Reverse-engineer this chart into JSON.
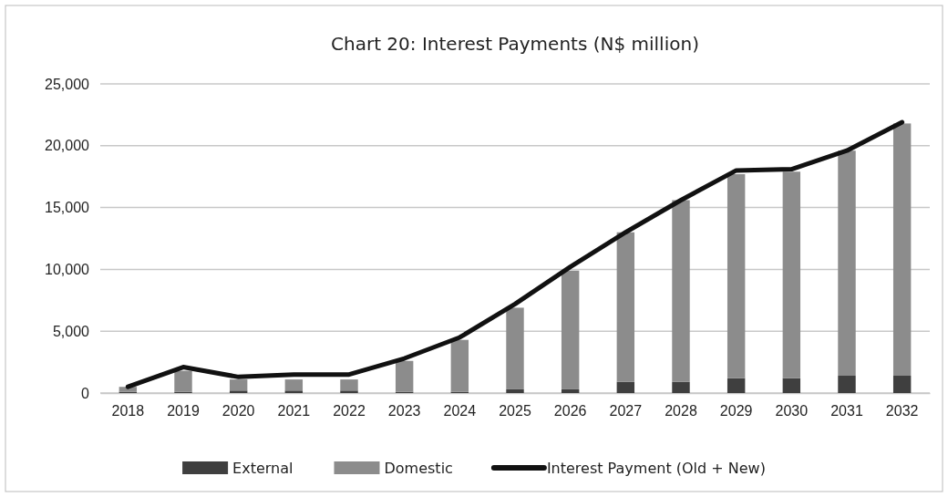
{
  "chart_data": {
    "type": "bar",
    "title": "Chart 20: Interest Payments (N$ million)",
    "stacked": true,
    "categories": [
      "2018",
      "2019",
      "2020",
      "2021",
      "2022",
      "2023",
      "2024",
      "2025",
      "2026",
      "2027",
      "2028",
      "2029",
      "2030",
      "2031",
      "2032"
    ],
    "series": [
      {
        "name": "External",
        "color": "#3f3f3f",
        "values": [
          100,
          100,
          200,
          200,
          200,
          100,
          100,
          300,
          300,
          900,
          900,
          1200,
          1200,
          1400,
          1400
        ]
      },
      {
        "name": "Domestic",
        "color": "#8c8c8c",
        "values": [
          400,
          1700,
          900,
          900,
          900,
          2500,
          4200,
          6600,
          9600,
          12100,
          14700,
          16500,
          16700,
          18200,
          20400
        ]
      },
      {
        "name": "Interest Payment (Old + New)",
        "type": "line",
        "color": "#111111",
        "values": [
          500,
          2100,
          1300,
          1500,
          1500,
          2800,
          4500,
          7200,
          10200,
          13000,
          15600,
          18000,
          18100,
          19600,
          21900
        ]
      }
    ],
    "ylim": [
      0,
      25000
    ],
    "yticks": [
      {
        "value": 0,
        "label": "0"
      },
      {
        "value": 5000,
        "label": "5,000"
      },
      {
        "value": 10000,
        "label": "10,000"
      },
      {
        "value": 15000,
        "label": "15,000"
      },
      {
        "value": 20000,
        "label": "20,000"
      },
      {
        "value": 25000,
        "label": "25,000"
      }
    ],
    "grid": "y",
    "legend": "bottom",
    "marker": "none",
    "line_style": "solid"
  }
}
